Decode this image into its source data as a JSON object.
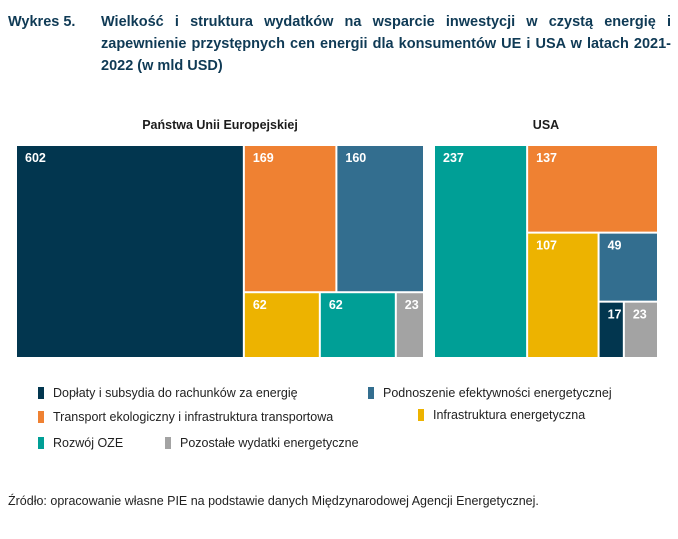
{
  "header": {
    "label": "Wykres 5.",
    "title": "Wielkość i struktura wydatków na wsparcie inwestycji w czystą energię i zapewnienie przystępnych cen energii dla konsumentów UE i USA w latach 2021-2022 (w mld USD)"
  },
  "chart_data": {
    "type": "treemap",
    "unit": "mld USD",
    "title": "Wielkość i struktura wydatków na wsparcie inwestycji w czystą energię i zapewnienie przystępnych cen energii dla konsumentów UE i USA w latach 2021-2022 (w mld USD)",
    "categories": [
      {
        "key": "doplaty",
        "name": "Dopłaty i subsydia do rachunków za energię",
        "color": "#02364f"
      },
      {
        "key": "efektywnosc",
        "name": "Podnoszenie efektywności energetycznej",
        "color": "#336e8f"
      },
      {
        "key": "transport",
        "name": "Transport ekologiczny i infrastruktura transportowa",
        "color": "#ef8132"
      },
      {
        "key": "infrastruktura",
        "name": "Infrastruktura energetyczna",
        "color": "#edb300"
      },
      {
        "key": "oze",
        "name": "Rozwój OZE",
        "color": "#009f96"
      },
      {
        "key": "pozostale",
        "name": "Pozostałe wydatki energetyczne",
        "color": "#a3a3a3"
      }
    ],
    "panels": [
      {
        "name": "Państwa Unii Europejskiej",
        "values": {
          "doplaty": 602,
          "transport": 169,
          "efektywnosc": 160,
          "infrastruktura": 62,
          "oze": 62,
          "pozostale": 23
        }
      },
      {
        "name": "USA",
        "values": {
          "oze": 237,
          "transport": 137,
          "infrastruktura": 107,
          "efektywnosc": 49,
          "doplaty": 17,
          "pozostale": 23
        }
      }
    ],
    "legend_position": "bottom"
  },
  "legend": {
    "items": [
      {
        "label": "Dopłaty i subsydia do rachunków za energię",
        "color": "#02364f"
      },
      {
        "label": "Podnoszenie efektywności energetycznej",
        "color": "#336e8f"
      },
      {
        "label": "Transport ekologiczny i infrastruktura transportowa",
        "color": "#ef8132"
      },
      {
        "label": "Infrastruktura energetyczna",
        "color": "#edb300"
      },
      {
        "label": "Rozwój OZE",
        "color": "#009f96"
      },
      {
        "label": "Pozostałe wydatki energetyczne",
        "color": "#a3a3a3"
      }
    ]
  },
  "source": "Źródło: opracowanie własne PIE na podstawie danych Międzynarodowej Agencji Energetycznej."
}
